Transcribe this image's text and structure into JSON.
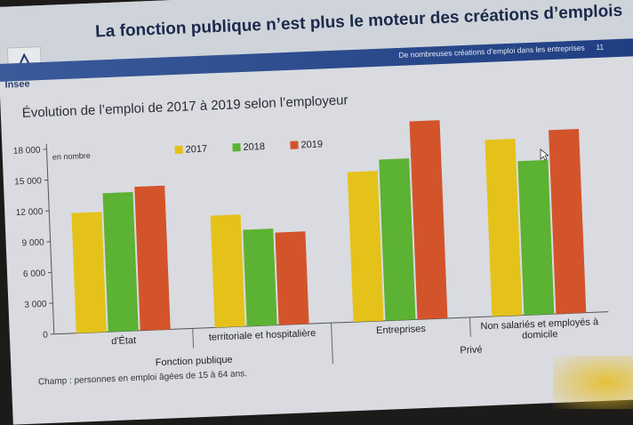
{
  "slide": {
    "title": "La fonction publique n’est plus le moteur des créations d’emplois",
    "subtitle": "De nombreuses créations d’emploi dans les entreprises",
    "page_number": "11",
    "logo_text": "Insee",
    "footnote": "Champ : personnes en emploi âgées de 15 à 64 ans."
  },
  "colors": {
    "2017": "#e5c21a",
    "2018": "#5cb232",
    "2019": "#d3542a",
    "band": "#1f3e82"
  },
  "chart_data": {
    "type": "bar",
    "title": "Évolution de l’emploi de 2017 à 2019 selon l’employeur",
    "unit_label": "en nombre",
    "ylim": [
      0,
      18000
    ],
    "yticks": [
      "0",
      "3 000",
      "6 000",
      "9 000",
      "12 000",
      "15 000",
      "18 000"
    ],
    "categories": [
      "d'État",
      "territoriale et hospitalière",
      "Entreprises",
      "Non salariés et employés à domicile"
    ],
    "groups": [
      {
        "label": "Fonction publique",
        "span": [
          0,
          1
        ]
      },
      {
        "label": "Privé",
        "span": [
          2,
          3
        ]
      }
    ],
    "series": [
      {
        "name": "2017",
        "values": [
          11700,
          10900,
          14600,
          17200
        ]
      },
      {
        "name": "2018",
        "values": [
          13500,
          9400,
          15700,
          15000
        ]
      },
      {
        "name": "2019",
        "values": [
          14000,
          9000,
          19300,
          17900
        ]
      }
    ],
    "legend_position": "top",
    "grid": false
  }
}
